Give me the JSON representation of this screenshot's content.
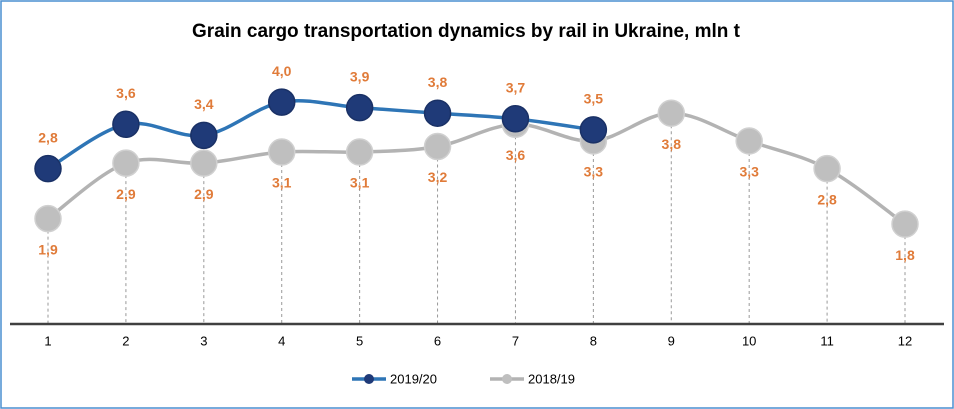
{
  "chart_data": {
    "type": "line",
    "title": "Grain cargo transportation dynamics by rail in Ukraine, mln t",
    "categories": [
      "1",
      "2",
      "3",
      "4",
      "5",
      "6",
      "7",
      "8",
      "9",
      "10",
      "11",
      "12"
    ],
    "series": [
      {
        "name": "2019/20",
        "color": "#2e75b6",
        "marker_color": "#1f3a78",
        "values": [
          2.8,
          3.6,
          3.4,
          4.0,
          3.9,
          3.8,
          3.7,
          3.5,
          null,
          null,
          null,
          null
        ],
        "value_labels": [
          "2,8",
          "3,6",
          "3,4",
          "4,0",
          "3,9",
          "3,8",
          "3,7",
          "3,5",
          null,
          null,
          null,
          null
        ],
        "label_position": "above"
      },
      {
        "name": "2018/19",
        "color": "#b3b3b3",
        "marker_color": "#bfbfbf",
        "values": [
          1.9,
          2.9,
          2.9,
          3.1,
          3.1,
          3.2,
          3.6,
          3.3,
          3.8,
          3.3,
          2.8,
          1.8
        ],
        "value_labels": [
          "1,9",
          "2,9",
          "2,9",
          "3,1",
          "3,1",
          "3,2",
          "3,6",
          "3,3",
          "3,8",
          "3,3",
          "2,8",
          "1,8"
        ],
        "label_position": "below"
      }
    ],
    "ylim": [
      0,
      5.3
    ],
    "label_color": "#e07b39",
    "smooth": true,
    "legend": "bottom"
  }
}
